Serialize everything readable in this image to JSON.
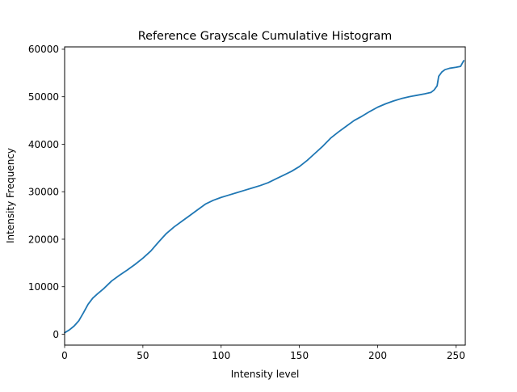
{
  "chart_data": {
    "type": "line",
    "title": "Reference Grayscale Cumulative Histogram",
    "xlabel": "Intensity level",
    "ylabel": "Intensity Frequency",
    "xlim": [
      0,
      256
    ],
    "ylim": [
      -2300,
      60500
    ],
    "xticks": [
      0,
      50,
      100,
      150,
      200,
      250
    ],
    "yticks": [
      0,
      10000,
      20000,
      30000,
      40000,
      50000,
      60000
    ],
    "grid": false,
    "line_color": "#1f77b4",
    "series": [
      {
        "values": [
          [
            0,
            300
          ],
          [
            3,
            900
          ],
          [
            6,
            1700
          ],
          [
            9,
            2800
          ],
          [
            12,
            4500
          ],
          [
            15,
            6300
          ],
          [
            18,
            7600
          ],
          [
            21,
            8500
          ],
          [
            25,
            9600
          ],
          [
            30,
            11200
          ],
          [
            35,
            12400
          ],
          [
            40,
            13500
          ],
          [
            45,
            14700
          ],
          [
            50,
            16000
          ],
          [
            55,
            17500
          ],
          [
            60,
            19400
          ],
          [
            65,
            21200
          ],
          [
            70,
            22600
          ],
          [
            75,
            23800
          ],
          [
            80,
            25000
          ],
          [
            85,
            26200
          ],
          [
            90,
            27400
          ],
          [
            95,
            28200
          ],
          [
            100,
            28800
          ],
          [
            105,
            29300
          ],
          [
            110,
            29800
          ],
          [
            115,
            30300
          ],
          [
            120,
            30800
          ],
          [
            125,
            31300
          ],
          [
            130,
            31900
          ],
          [
            135,
            32700
          ],
          [
            140,
            33500
          ],
          [
            145,
            34300
          ],
          [
            150,
            35300
          ],
          [
            155,
            36600
          ],
          [
            160,
            38100
          ],
          [
            165,
            39600
          ],
          [
            170,
            41300
          ],
          [
            175,
            42600
          ],
          [
            180,
            43800
          ],
          [
            185,
            45000
          ],
          [
            190,
            45900
          ],
          [
            195,
            46900
          ],
          [
            200,
            47800
          ],
          [
            205,
            48500
          ],
          [
            210,
            49100
          ],
          [
            215,
            49600
          ],
          [
            220,
            50000
          ],
          [
            225,
            50300
          ],
          [
            230,
            50600
          ],
          [
            234,
            50900
          ],
          [
            236,
            51400
          ],
          [
            238,
            52300
          ],
          [
            239,
            54300
          ],
          [
            241,
            55200
          ],
          [
            243,
            55700
          ],
          [
            246,
            56000
          ],
          [
            250,
            56200
          ],
          [
            253,
            56400
          ],
          [
            255,
            57600
          ]
        ]
      }
    ]
  }
}
